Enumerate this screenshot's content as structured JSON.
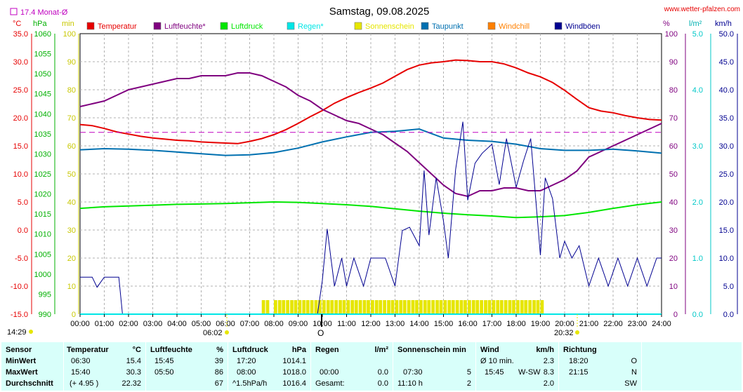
{
  "header": {
    "title": "Samstag, 09.08.2025",
    "site": "www.wetter-pfalzen.com",
    "monthly_avg": "17.4 Monat-Ø"
  },
  "unit_labels": {
    "temp": "°C",
    "press": "hPa",
    "min": "min",
    "pct": "%",
    "rain": "l/m²",
    "wind": "km/h"
  },
  "legend": [
    {
      "name": "Temperatur",
      "color": "#e60000"
    },
    {
      "name": "Luftfeuchte*",
      "color": "#7f007f"
    },
    {
      "name": "Luftdruck",
      "color": "#00e600"
    },
    {
      "name": "Regen*",
      "color": "#00e6e6"
    },
    {
      "name": "Sonnenschein",
      "color": "#e6e600"
    },
    {
      "name": "Taupunkt",
      "color": "#0070b0"
    },
    {
      "name": "Windchill",
      "color": "#ff8000"
    },
    {
      "name": "Windböen",
      "color": "#000090"
    }
  ],
  "markers": {
    "sunrise": "06:02",
    "sunset": "20:32",
    "left_time": "14:29",
    "moon_symbol": "O"
  },
  "axes": {
    "temp_ticks": [
      "35.0",
      "30.0",
      "25.0",
      "20.0",
      "15.0",
      "10.0",
      "5.0",
      "0.0",
      "-5.0",
      "-10.0",
      "-15.0"
    ],
    "press_ticks": [
      "1060",
      "1055",
      "1050",
      "1045",
      "1040",
      "1035",
      "1030",
      "1025",
      "1020",
      "1015",
      "1010",
      "1005",
      "1000",
      "995",
      "990"
    ],
    "min_ticks": [
      "100",
      "90",
      "80",
      "70",
      "60",
      "50",
      "40",
      "30",
      "20",
      "10",
      "0"
    ],
    "pct_ticks": [
      "100",
      "90",
      "80",
      "70",
      "60",
      "50",
      "40",
      "30",
      "20",
      "10",
      "0"
    ],
    "rain_ticks": [
      "5.0",
      "4.0",
      "3.0",
      "2.0",
      "1.0",
      "0.0"
    ],
    "wind_ticks": [
      "50.0",
      "45.0",
      "40.0",
      "35.0",
      "30.0",
      "25.0",
      "20.0",
      "15.0",
      "10.0",
      "5.0",
      "0.0"
    ],
    "x_ticks": [
      "00:00",
      "01:00",
      "02:00",
      "03:00",
      "04:00",
      "05:00",
      "06:00",
      "07:00",
      "08:00",
      "09:00",
      "10:00",
      "11:00",
      "12:00",
      "13:00",
      "14:00",
      "15:00",
      "16:00",
      "17:00",
      "18:00",
      "19:00",
      "20:00",
      "21:00",
      "22:00",
      "23:00",
      "24:00"
    ]
  },
  "chart_data": {
    "type": "line",
    "title": "Samstag, 09.08.2025",
    "x_range": [
      "00:00",
      "24:00"
    ],
    "temp_range": [
      -15,
      35
    ],
    "press_range": [
      990,
      1060
    ],
    "pct_range": [
      0,
      100
    ],
    "rain_range": [
      0,
      5
    ],
    "wind_range": [
      0,
      50
    ],
    "monthly_avg_temp": 17.4,
    "series": [
      {
        "name": "Temperatur",
        "axis": "°C",
        "color": "#e60000",
        "x": [
          0,
          0.5,
          1,
          1.5,
          2,
          2.5,
          3,
          3.5,
          4,
          4.5,
          5,
          5.5,
          6,
          6.5,
          7,
          7.5,
          8,
          8.5,
          9,
          9.5,
          10,
          10.5,
          11,
          11.5,
          12,
          12.5,
          13,
          13.5,
          14,
          14.5,
          15,
          15.5,
          16,
          16.5,
          17,
          17.5,
          18,
          18.5,
          19,
          19.5,
          20,
          20.5,
          21,
          21.5,
          22,
          22.5,
          23,
          23.5,
          24
        ],
        "values": [
          18.8,
          18.6,
          18.1,
          17.5,
          17.1,
          16.7,
          16.4,
          16.2,
          16.0,
          15.9,
          15.7,
          15.6,
          15.5,
          15.4,
          15.8,
          16.3,
          17.0,
          17.9,
          19.0,
          20.2,
          21.3,
          22.6,
          23.6,
          24.5,
          25.3,
          26.2,
          27.4,
          28.6,
          29.4,
          29.8,
          30.0,
          30.3,
          30.2,
          30.0,
          30.0,
          29.6,
          28.9,
          28.0,
          27.3,
          26.3,
          24.9,
          23.3,
          21.8,
          21.2,
          20.9,
          20.4,
          20.0,
          19.7,
          19.6
        ]
      },
      {
        "name": "Luftfeuchte*",
        "axis": "%",
        "color": "#7f007f",
        "x": [
          0,
          0.5,
          1,
          1.5,
          2,
          2.5,
          3,
          3.5,
          4,
          4.5,
          5,
          5.5,
          6,
          6.5,
          7,
          7.5,
          8,
          8.5,
          9,
          9.5,
          10,
          10.5,
          11,
          11.5,
          12,
          12.5,
          13,
          13.5,
          14,
          14.5,
          15,
          15.5,
          16,
          16.5,
          17,
          17.5,
          18,
          18.5,
          19,
          19.5,
          20,
          20.5,
          21,
          21.5,
          22,
          22.5,
          23,
          23.5,
          24
        ],
        "values": [
          74,
          75,
          76,
          78,
          80,
          81,
          82,
          83,
          84,
          84,
          85,
          85,
          85,
          86,
          86,
          85,
          83,
          81,
          78,
          76,
          73,
          71,
          69,
          68,
          66,
          64,
          61,
          58,
          54,
          50,
          46,
          43,
          42,
          44,
          44,
          45,
          45,
          44,
          44,
          46,
          48,
          51,
          56,
          58,
          60,
          62,
          64,
          66,
          68
        ]
      },
      {
        "name": "Luftdruck",
        "axis": "hPa",
        "color": "#00e600",
        "x": [
          0,
          1,
          2,
          3,
          4,
          5,
          6,
          7,
          8,
          9,
          10,
          11,
          12,
          13,
          14,
          15,
          16,
          17,
          18,
          19,
          20,
          21,
          22,
          23,
          24
        ],
        "values": [
          1016.4,
          1016.8,
          1017.0,
          1017.2,
          1017.4,
          1017.5,
          1017.6,
          1017.8,
          1018.0,
          1017.9,
          1017.6,
          1017.3,
          1016.9,
          1016.3,
          1015.7,
          1015.2,
          1014.8,
          1014.5,
          1014.1,
          1014.3,
          1014.6,
          1015.4,
          1016.4,
          1017.3,
          1018.0
        ]
      },
      {
        "name": "Taupunkt",
        "axis": "°C",
        "color": "#0070b0",
        "x": [
          0,
          1,
          2,
          3,
          4,
          5,
          6,
          7,
          8,
          9,
          10,
          11,
          12,
          13,
          14,
          15,
          16,
          17,
          18,
          19,
          20,
          21,
          22,
          23,
          24
        ],
        "values": [
          14.3,
          14.5,
          14.4,
          14.2,
          13.9,
          13.6,
          13.3,
          13.4,
          13.8,
          14.6,
          15.7,
          16.6,
          17.4,
          17.6,
          18.0,
          16.4,
          16.0,
          15.8,
          15.3,
          14.5,
          14.2,
          14.2,
          14.4,
          14.1,
          13.7
        ]
      },
      {
        "name": "Windböen",
        "axis": "km/h",
        "color": "#000090",
        "x": [
          0,
          0.5,
          0.7,
          1,
          1.3,
          1.6,
          1.75,
          9.8,
          10,
          10.2,
          10.5,
          10.8,
          11,
          11.3,
          11.7,
          12,
          12.3,
          12.6,
          13,
          13.3,
          13.6,
          14,
          14.2,
          14.4,
          14.7,
          15,
          15.2,
          15.5,
          15.8,
          16,
          16.3,
          16.6,
          17,
          17.3,
          17.6,
          18,
          18.3,
          18.6,
          19,
          19.2,
          19.5,
          19.8,
          20,
          20.3,
          20.6,
          21,
          21.4,
          21.8,
          22.2,
          22.6,
          23,
          23.4,
          23.8,
          24
        ],
        "values": [
          6.6,
          6.6,
          4.8,
          6.6,
          6.6,
          6.6,
          0,
          0,
          6.0,
          15.2,
          5.0,
          10.0,
          5.0,
          10.0,
          5.0,
          10.0,
          10.0,
          10.0,
          5.0,
          14.9,
          15.5,
          12.2,
          25.6,
          14.1,
          24.3,
          16.6,
          10.0,
          25.8,
          34.3,
          20.3,
          26.9,
          28.7,
          30.3,
          23.1,
          31.3,
          22.6,
          27.3,
          31.3,
          10.5,
          24.3,
          20.6,
          10.0,
          13.0,
          10.0,
          12.2,
          5.0,
          10.0,
          5.0,
          10.0,
          5.0,
          10.0,
          5.0,
          10.0,
          10.0
        ]
      },
      {
        "name": "Sonnenschein",
        "axis": "min",
        "color": "#e6e600",
        "x": [
          7.5,
          7.67,
          8.0,
          8.17,
          8.33,
          8.5,
          8.67,
          8.83,
          9.0,
          9.17,
          9.33,
          9.5,
          9.67,
          9.83,
          10.0,
          10.17,
          10.33,
          10.5,
          10.67,
          10.83,
          11.0,
          11.17,
          11.33,
          11.5,
          11.67,
          11.83,
          12.0,
          12.17,
          12.33,
          12.5,
          12.67,
          12.83,
          13.0,
          13.17,
          13.33,
          13.5,
          13.67,
          13.83,
          14.0,
          14.17,
          14.33,
          14.5,
          14.67,
          14.83,
          15.0,
          15.17,
          15.33,
          15.5,
          15.67,
          15.83,
          16.0,
          16.17,
          16.33,
          16.5,
          16.67,
          16.83,
          17.0,
          17.17,
          17.33,
          17.5,
          17.67,
          17.83,
          18.0,
          18.17,
          18.33,
          18.5,
          18.67,
          18.83,
          19.0
        ],
        "values": [
          5,
          5,
          5,
          5,
          5,
          5,
          5,
          5,
          5,
          5,
          5,
          5,
          5,
          5,
          5,
          5,
          5,
          5,
          5,
          5,
          5,
          5,
          5,
          5,
          5,
          5,
          5,
          5,
          5,
          5,
          5,
          5,
          5,
          5,
          5,
          5,
          5,
          5,
          5,
          5,
          5,
          5,
          5,
          5,
          5,
          5,
          5,
          5,
          5,
          5,
          5,
          5,
          5,
          5,
          5,
          5,
          5,
          5,
          5,
          5,
          5,
          5,
          5,
          5,
          5,
          5,
          5,
          5,
          5
        ]
      },
      {
        "name": "Regen*",
        "axis": "l/m²",
        "color": "#00e6e6",
        "x": [
          0,
          24
        ],
        "values": [
          0.0,
          0.0
        ]
      }
    ]
  },
  "stats": {
    "headers": {
      "sensor": "Sensor",
      "temp": "Temperatur",
      "temp_unit": "°C",
      "hum": "Luftfeuchte",
      "hum_unit": "%",
      "press": "Luftdruck",
      "press_unit": "hPa",
      "rain": "Regen",
      "rain_unit": "l/m²",
      "sun": "Sonnenschein min",
      "wind": "Wind",
      "wind_unit": "km/h",
      "dir": "Richtung"
    },
    "rows": [
      {
        "label": "MinWert",
        "temp_time": "06:30",
        "temp_val": "15.4",
        "hum_time": "15:45",
        "hum_val": "39",
        "press_time": "17:20",
        "press_val": "1014.1",
        "rain_time": "",
        "rain_val": "",
        "sun_time": "",
        "sun_val": "",
        "wind_label": "Ø 10 min.",
        "wind_dir": "",
        "wind_val": "2.3",
        "dir_time": "18:20",
        "dir_val": "O"
      },
      {
        "label": "MaxWert",
        "temp_time": "15:40",
        "temp_val": "30.3",
        "hum_time": "05:50",
        "hum_val": "86",
        "press_time": "08:00",
        "press_val": "1018.0",
        "rain_time": "00:00",
        "rain_val": "0.0",
        "sun_time": "07:30",
        "sun_val": "5",
        "wind_label": "15:45",
        "wind_dir": "W-SW",
        "wind_val": "8.3",
        "dir_time": "21:15",
        "dir_val": "N"
      },
      {
        "label": "Durchschnitt",
        "temp_time": "(+ 4.95 )",
        "temp_val": "22.32",
        "hum_time": "",
        "hum_val": "67",
        "press_time": "^1.5hPa/h",
        "press_val": "1016.4",
        "rain_time": "Gesamt:",
        "rain_val": "0.0",
        "sun_time": "11:10 h",
        "sun_val": "2",
        "wind_label": "",
        "wind_dir": "",
        "wind_val": "2.0",
        "dir_time": "",
        "dir_val": "SW"
      }
    ]
  }
}
